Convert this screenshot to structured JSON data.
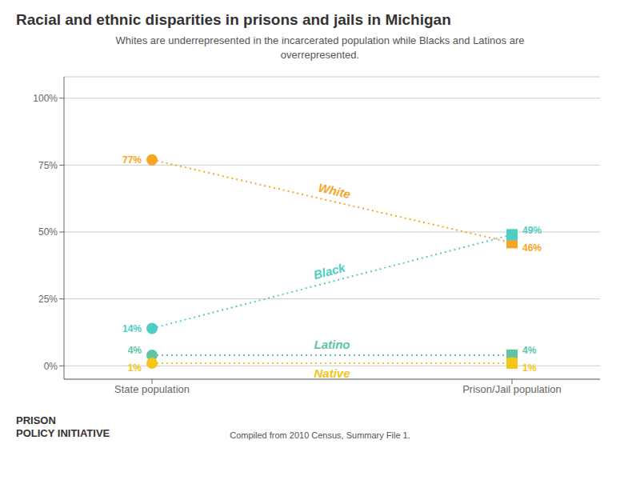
{
  "chart_data": {
    "type": "line",
    "title": "Racial and ethnic disparities in prisons and jails in Michigan",
    "subtitle": "Whites are underrepresented in the incarcerated population while Blacks and Latinos are\noverrepresented.",
    "categories": [
      "State population",
      "Prison/Jail population"
    ],
    "series": [
      {
        "name": "White",
        "color": "#f5a623",
        "values": [
          77,
          46
        ],
        "value_labels": [
          "77%",
          "46%"
        ],
        "line_style": "dotted"
      },
      {
        "name": "Black",
        "color": "#4ecdc4",
        "values": [
          14,
          49
        ],
        "value_labels": [
          "14%",
          "49%"
        ],
        "line_style": "dotted"
      },
      {
        "name": "Latino",
        "color": "#5ec4a8",
        "values": [
          4,
          4
        ],
        "value_labels": [
          "4%",
          "4%"
        ],
        "line_style": "dotted"
      },
      {
        "name": "Native",
        "color": "#f5c518",
        "values": [
          1,
          1
        ],
        "value_labels": [
          "1%",
          "1%"
        ],
        "line_style": "dotted"
      }
    ],
    "ylim": [
      -5,
      108
    ],
    "yticks": [
      {
        "value": 0,
        "label": "0%"
      },
      {
        "value": 25,
        "label": "25%"
      },
      {
        "value": 50,
        "label": "50%"
      },
      {
        "value": 75,
        "label": "75%"
      },
      {
        "value": 100,
        "label": "100%"
      }
    ],
    "grid": true,
    "data_labels": true,
    "annotations": [
      "PRISON\nPOLICY INITIATIVE",
      "Compiled from 2010 Census, Summary File 1."
    ]
  }
}
